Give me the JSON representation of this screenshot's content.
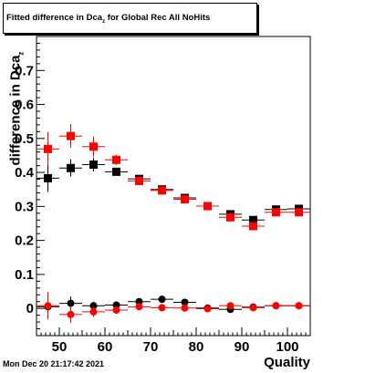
{
  "title": {
    "prefix": "Fitted difference in Dca",
    "subscript": "z",
    "suffix": " for Global Rec All NoHits"
  },
  "datestamp": "Mon Dec 20 21:17:42 2021",
  "colors": {
    "series_black": "#000000",
    "series_red": "#ff0000",
    "axis": "#000000"
  },
  "chart_data": {
    "type": "scatter",
    "title": "Fitted difference in Dca_z for Global Rec All NoHits",
    "xlabel": "Quality",
    "ylabel": "difference in Dca_z",
    "xlim": [
      45,
      105
    ],
    "ylim": [
      -0.08,
      0.8
    ],
    "xticks": [
      50,
      60,
      70,
      80,
      90,
      100
    ],
    "yticks": [
      0,
      0.1,
      0.2,
      0.3,
      0.4,
      0.5,
      0.6,
      0.7
    ],
    "ytick_labels": [
      "0",
      "0.1",
      "0.2",
      "0.3",
      "0.4",
      "0.5",
      "0.6",
      "0.7"
    ],
    "grid": false,
    "legend": "none",
    "series": [
      {
        "marker": "square",
        "color": "#000000",
        "x": [
          47.5,
          52.5,
          57.5,
          62.5,
          67.5,
          72.5,
          77.5,
          82.5,
          87.5,
          92.5,
          97.5,
          102.5
        ],
        "y": [
          0.383,
          0.413,
          0.423,
          0.402,
          0.381,
          0.35,
          0.325,
          0.301,
          0.277,
          0.26,
          0.291,
          0.293
        ],
        "yerr": [
          0.04,
          0.025,
          0.02,
          0.01,
          0.01,
          0.008,
          0.007,
          0.006,
          0.01,
          0.01,
          0.008,
          0.008
        ]
      },
      {
        "marker": "square",
        "color": "#ff0000",
        "x": [
          47.5,
          52.5,
          57.5,
          62.5,
          67.5,
          72.5,
          77.5,
          82.5,
          87.5,
          92.5,
          97.5,
          102.5
        ],
        "y": [
          0.469,
          0.507,
          0.476,
          0.437,
          0.375,
          0.347,
          0.321,
          0.301,
          0.268,
          0.242,
          0.283,
          0.283
        ],
        "yerr": [
          0.05,
          0.035,
          0.03,
          0.015,
          0.012,
          0.01,
          0.008,
          0.007,
          0.012,
          0.012,
          0.008,
          0.008
        ]
      },
      {
        "marker": "circle",
        "color": "#000000",
        "x": [
          47.5,
          52.5,
          57.5,
          62.5,
          67.5,
          72.5,
          77.5,
          82.5,
          87.5,
          92.5,
          97.5,
          102.5
        ],
        "y": [
          0.005,
          0.015,
          0.008,
          0.01,
          0.02,
          0.027,
          0.018,
          0.001,
          -0.003,
          0.004,
          0.008,
          0.008
        ],
        "yerr": [
          0.025,
          0.02,
          0.012,
          0.008,
          0.008,
          0.006,
          0.005,
          0.004,
          0.006,
          0.005,
          0.004,
          0.004
        ]
      },
      {
        "marker": "circle",
        "color": "#ff0000",
        "x": [
          47.5,
          52.5,
          57.5,
          62.5,
          67.5,
          72.5,
          77.5,
          82.5,
          87.5,
          92.5,
          97.5,
          102.5
        ],
        "y": [
          0.008,
          -0.018,
          -0.01,
          -0.005,
          0.005,
          0.002,
          0.001,
          -0.001,
          0.008,
          0.002,
          0.008,
          0.008
        ],
        "yerr": [
          0.04,
          0.025,
          0.015,
          0.01,
          0.008,
          0.006,
          0.005,
          0.004,
          0.007,
          0.006,
          0.005,
          0.005
        ]
      }
    ]
  }
}
